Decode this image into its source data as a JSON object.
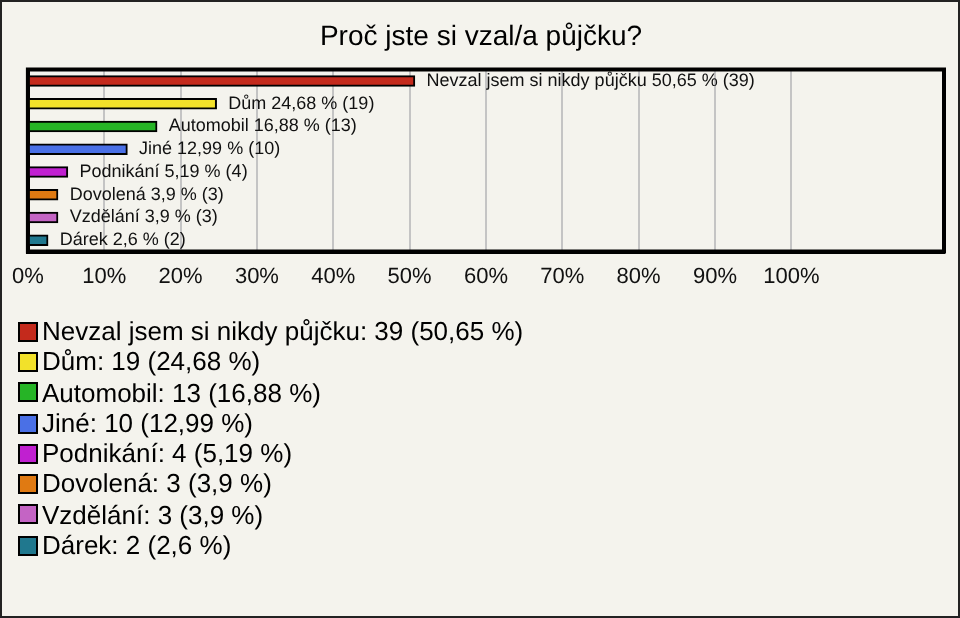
{
  "chart_data": {
    "type": "bar",
    "orientation": "horizontal",
    "title": "Proč jste si vzal/a půjčku?",
    "categories": [
      null,
      null,
      null,
      null,
      null,
      null,
      null,
      null
    ],
    "values": [
      50.65,
      24.68,
      16.88,
      12.99,
      5.19,
      3.9,
      3.9,
      2.6
    ],
    "colors": [
      "#c42a1c",
      "#f2e12a",
      "#26b426",
      "#4a70e6",
      "#c020d0",
      "#e07a12",
      "#c464c4",
      "#20788e"
    ],
    "value_labels": [
      "Nevzal jsem si nikdy půjčku 50,65 % (39)",
      "Dům 24,68 % (19)",
      "Automobil 16,88 % (13)",
      "Jiné 12,99 % (10)",
      "Podnikání 5,19 % (4)",
      "Dovolená 3,9 % (3)",
      "Vzdělání 3,9 % (3)",
      "Dárek 2,6 % (2)"
    ],
    "annotations": [
      "Nevzal jsem si nikdy půjčku: 39 (50,65 %)",
      "Dům: 19 (24,68 %)",
      "Automobil: 13 (16,88 %)",
      "Jiné: 10 (12,99 %)",
      "Podnikání: 4 (5,19 %)",
      "Dovolená: 3 (3,9 %)",
      "Vzdělání: 3 (3,9 %)",
      "Dárek: 2 (2,6 %)"
    ],
    "xlim": [
      0,
      120
    ],
    "xticks": [
      {
        "value": 0,
        "label": "0%"
      },
      {
        "value": 10,
        "label": "10%"
      },
      {
        "value": 20,
        "label": "20%"
      },
      {
        "value": 30,
        "label": "30%"
      },
      {
        "value": 40,
        "label": "40%"
      },
      {
        "value": 50,
        "label": "50%"
      },
      {
        "value": 60,
        "label": "60%"
      },
      {
        "value": 70,
        "label": "70%"
      },
      {
        "value": 80,
        "label": "80%"
      },
      {
        "value": 90,
        "label": "90%"
      },
      {
        "value": 100,
        "label": "100%"
      }
    ],
    "grid": "x"
  }
}
